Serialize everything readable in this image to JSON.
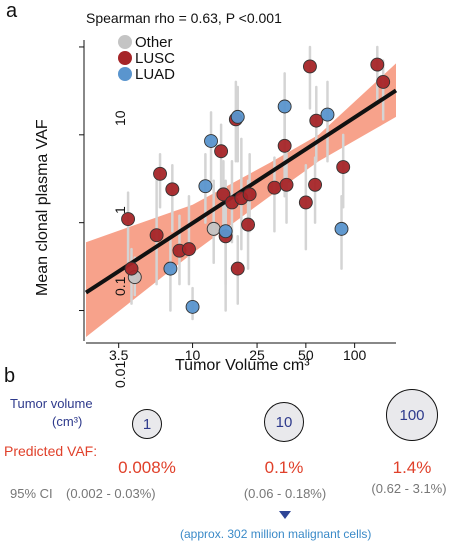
{
  "panel_a_label": "a",
  "panel_b_label": "b",
  "chart_data": {
    "type": "scatter",
    "subtitle": "Spearman rho = 0.63, P <0.001",
    "xlabel": "Tumor Volume cm³",
    "ylabel": "Mean clonal plasma VAF",
    "x_scale": "log",
    "y_scale": "log",
    "xlim": [
      2.2,
      180
    ],
    "ylim": [
      0.0045,
      12
    ],
    "x_ticks": [
      3.5,
      10,
      25,
      50,
      100
    ],
    "x_tick_labels": [
      "3.5",
      "10",
      "25",
      "50",
      "100"
    ],
    "y_ticks": [
      0.01,
      0.1,
      1,
      10
    ],
    "y_tick_labels": [
      "0.01",
      "0.1",
      "1",
      "10"
    ],
    "legend_position": "top-left",
    "legend": [
      {
        "name": "Other",
        "color": "#c4c4c4"
      },
      {
        "name": "LUSC",
        "color": "#a52528"
      },
      {
        "name": "LUAD",
        "color": "#5a95ce"
      }
    ],
    "regression": {
      "x": [
        2.2,
        180
      ],
      "y": [
        0.016,
        3.2
      ],
      "color": "#111111"
    },
    "ci_band": {
      "x": [
        2.2,
        10,
        30,
        60,
        180
      ],
      "lower": [
        0.005,
        0.045,
        0.2,
        0.5,
        1.6
      ],
      "upper": [
        0.06,
        0.16,
        0.48,
        1.0,
        6.5
      ],
      "color": "#f7a28b"
    },
    "series": [
      {
        "name": "Other",
        "color": "#c4c4c4",
        "points": [
          {
            "x": 4.4,
            "y": 0.024,
            "lo": 0.015,
            "hi": 0.04
          },
          {
            "x": 13.5,
            "y": 0.085,
            "lo": 0.035,
            "hi": 0.3
          }
        ]
      },
      {
        "name": "LUSC",
        "color": "#a52528",
        "points": [
          {
            "x": 4.0,
            "y": 0.11,
            "lo": 0.035,
            "hi": 0.22
          },
          {
            "x": 4.2,
            "y": 0.03,
            "lo": 0.012,
            "hi": 0.05
          },
          {
            "x": 6.0,
            "y": 0.072,
            "lo": 0.02,
            "hi": 0.3
          },
          {
            "x": 6.3,
            "y": 0.36,
            "lo": 0.15,
            "hi": 0.6
          },
          {
            "x": 7.5,
            "y": 0.24,
            "lo": 0.08,
            "hi": 0.45
          },
          {
            "x": 8.3,
            "y": 0.048,
            "lo": 0.02,
            "hi": 0.12
          },
          {
            "x": 9.5,
            "y": 0.05,
            "lo": 0.02,
            "hi": 0.2
          },
          {
            "x": 15.0,
            "y": 0.65,
            "lo": 0.2,
            "hi": 1.3
          },
          {
            "x": 15.5,
            "y": 0.21,
            "lo": 0.08,
            "hi": 0.5
          },
          {
            "x": 16.0,
            "y": 0.07,
            "lo": 0.01,
            "hi": 0.3
          },
          {
            "x": 17.5,
            "y": 0.17,
            "lo": 0.06,
            "hi": 0.5
          },
          {
            "x": 18.5,
            "y": 1.5,
            "lo": 0.5,
            "hi": 4.0
          },
          {
            "x": 19.0,
            "y": 0.03,
            "lo": 0.012,
            "hi": 0.07
          },
          {
            "x": 20.0,
            "y": 0.19,
            "lo": 0.05,
            "hi": 0.9
          },
          {
            "x": 22.0,
            "y": 0.095,
            "lo": 0.03,
            "hi": 0.3
          },
          {
            "x": 22.5,
            "y": 0.21,
            "lo": 0.08,
            "hi": 0.6
          },
          {
            "x": 32.0,
            "y": 0.25,
            "lo": 0.08,
            "hi": 0.55
          },
          {
            "x": 37.0,
            "y": 0.75,
            "lo": 0.2,
            "hi": 2.5
          },
          {
            "x": 38.0,
            "y": 0.27,
            "lo": 0.1,
            "hi": 0.6
          },
          {
            "x": 50.0,
            "y": 0.17,
            "lo": 0.05,
            "hi": 0.45
          },
          {
            "x": 53.0,
            "y": 6.0,
            "lo": 2.0,
            "hi": 10.0
          },
          {
            "x": 57.0,
            "y": 0.27,
            "lo": 0.1,
            "hi": 0.55
          },
          {
            "x": 58.0,
            "y": 1.45,
            "lo": 0.5,
            "hi": 3.5
          },
          {
            "x": 85.0,
            "y": 0.43,
            "lo": 0.15,
            "hi": 1.0
          },
          {
            "x": 138.0,
            "y": 6.3,
            "lo": 2.5,
            "hi": 10.0
          },
          {
            "x": 150.0,
            "y": 4.0,
            "lo": 1.5,
            "hi": 7.0
          }
        ]
      },
      {
        "name": "LUAD",
        "color": "#5a95ce",
        "points": [
          {
            "x": 7.3,
            "y": 0.03,
            "lo": 0.01,
            "hi": 0.07
          },
          {
            "x": 10.0,
            "y": 0.011,
            "lo": 0.008,
            "hi": 0.018
          },
          {
            "x": 12.0,
            "y": 0.26,
            "lo": 0.1,
            "hi": 0.6
          },
          {
            "x": 13.0,
            "y": 0.85,
            "lo": 0.3,
            "hi": 1.8
          },
          {
            "x": 16.0,
            "y": 0.08,
            "lo": 0.02,
            "hi": 0.25
          },
          {
            "x": 19.0,
            "y": 1.6,
            "lo": 0.5,
            "hi": 3.5
          },
          {
            "x": 37.0,
            "y": 2.1,
            "lo": 0.6,
            "hi": 5.0
          },
          {
            "x": 68.0,
            "y": 1.7,
            "lo": 0.5,
            "hi": 4.0
          },
          {
            "x": 83.0,
            "y": 0.085,
            "lo": 0.03,
            "hi": 0.2
          }
        ]
      }
    ]
  },
  "panel_b": {
    "tumor_volume_label": "Tumor volume",
    "tumor_volume_unit": "(cm³)",
    "predicted_label": "Predicted VAF:",
    "ci_label": "95% CI",
    "columns": [
      {
        "volume": "1",
        "vaf": "0.008%",
        "ci": "(0.002 - 0.03%)"
      },
      {
        "volume": "10",
        "vaf": "0.1%",
        "ci": "(0.06 - 0.18%)"
      },
      {
        "volume": "100",
        "vaf": "1.4%",
        "ci": "(0.62 - 3.1%)"
      }
    ],
    "note": "(approx. 302 million malignant cells)"
  }
}
